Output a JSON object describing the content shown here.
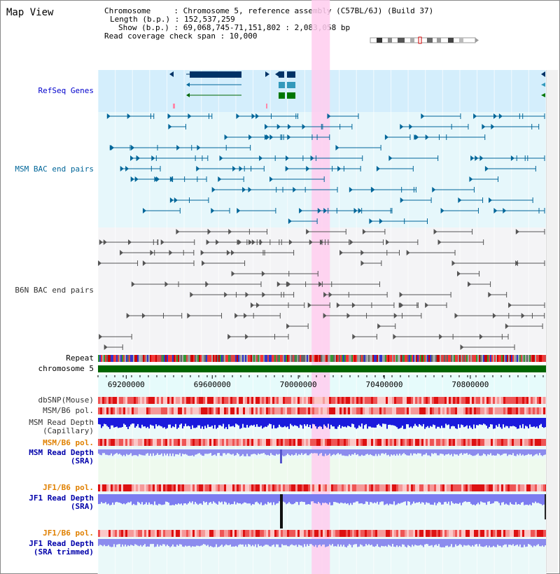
{
  "view": {
    "title": "Map View"
  },
  "region": {
    "chromosome_line": "Chromosome     : Chromosome 5, reference assembly (C57BL/6J) (Build 37)",
    "length_line": "Length (b.p.) : 152,537,259",
    "show_line": "Show (b.p.) : 69,068,745-71,151,802 : 2,083,058 bp",
    "coverage_line": "Read coverage check span : 10,000",
    "start_bp": 69068745,
    "end_bp": 71151802,
    "highlight_bp": [
      70062000,
      70147000
    ]
  },
  "tracks": {
    "refseq_label": "RefSeq Genes",
    "msm_bac_label": "MSM BAC end pairs",
    "b6n_bac_label": "B6N BAC end pairs",
    "repeat_label": "Repeat",
    "chromosome_label": "chromosome 5",
    "dbsnp_label": "dbSNP(Mouse)",
    "msm_b6_pol_label": "MSM/B6 pol.",
    "msm_depth_cap_label1": "MSM Read Depth",
    "msm_depth_cap_label2": "(Capillary)",
    "msm_b6_pol2_label": "MSM/B6 pol.",
    "msm_depth_sra_label1": "MSM Read Depth",
    "msm_depth_sra_label2": "(SRA)",
    "jf1_pol_label": "JF1/B6 pol.",
    "jf1_depth_sra_label1": "JF1 Read Depth",
    "jf1_depth_sra_label2": "(SRA)",
    "jf1_pol2_label": "JF1/B6 pol.",
    "jf1_trim_label1": "JF1 Read Depth",
    "jf1_trim_label2": "(SRA trimmed)"
  },
  "axis": {
    "ticks": [
      {
        "label": "69200000",
        "bp": 69200000
      },
      {
        "label": "69600000",
        "bp": 69600000
      },
      {
        "label": "70000000",
        "bp": 70000000
      },
      {
        "label": "70400000",
        "bp": 70400000
      },
      {
        "label": "70800000",
        "bp": 70800000
      }
    ]
  },
  "colors": {
    "refseq_label": "#0000cc",
    "bac_label": "#006699",
    "pol_orange": "#e08000",
    "depth_blue": "#0000cc",
    "highlight": "#ffccee"
  }
}
